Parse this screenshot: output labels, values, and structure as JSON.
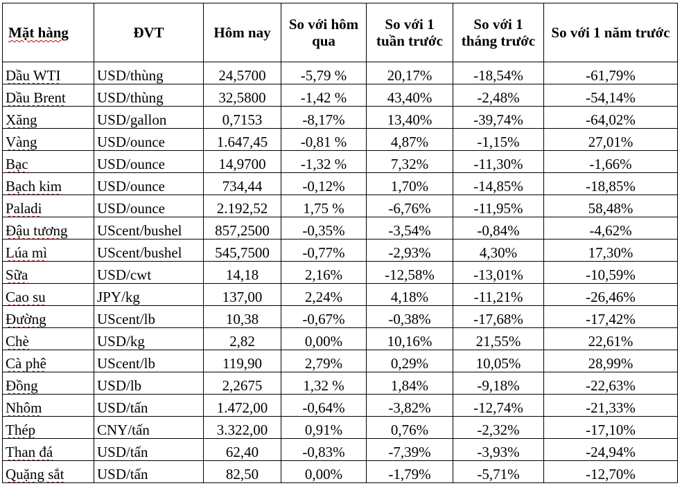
{
  "table": {
    "headers": {
      "item": "Mặt hàng",
      "unit": "ĐVT",
      "today": "Hôm nay",
      "vs_yesterday": "So với hôm qua",
      "vs_week": "So với 1 tuần trước",
      "vs_month": "So với 1 tháng trước",
      "vs_year": "So với 1 năm trước"
    },
    "rows": [
      {
        "item": "Dầu WTI",
        "unit": "USD/thùng",
        "today": "24,5700",
        "day": "-5,79 %",
        "week": "20,17%",
        "month": "-18,54%",
        "year": "-61,79%"
      },
      {
        "item": "Dầu Brent",
        "unit": "USD/thùng",
        "today": "32,5800",
        "day": "-1,42 %",
        "week": "43,40%",
        "month": "-2,48%",
        "year": "-54,14%"
      },
      {
        "item": "Xăng",
        "unit": "USD/gallon",
        "today": "0,7153",
        "day": "-8,17%",
        "week": "13,40%",
        "month": "-39,74%",
        "year": "-64,02%"
      },
      {
        "item": "Vàng",
        "unit": "USD/ounce",
        "today": "1.647,45",
        "day": "-0,81 %",
        "week": "4,87%",
        "month": "-1,15%",
        "year": "27,01%"
      },
      {
        "item": "Bạc",
        "unit": "USD/ounce",
        "today": "14,9700",
        "day": "-1,32 %",
        "week": "7,32%",
        "month": "-11,30%",
        "year": "-1,66%"
      },
      {
        "item": "Bạch kim",
        "unit": "USD/ounce",
        "today": "734,44",
        "day": "-0,12%",
        "week": "1,70%",
        "month": "-14,85%",
        "year": "-18,85%"
      },
      {
        "item": "Paladi",
        "unit": "USD/ounce",
        "today": "2.192,52",
        "day": "1,75 %",
        "week": "-6,76%",
        "month": "-11,95%",
        "year": "58,48%"
      },
      {
        "item": "Đậu tương",
        "unit": "UScent/bushel",
        "today": "857,2500",
        "day": "-0,35%",
        "week": "-3,54%",
        "month": "-0,84%",
        "year": "-4,62%"
      },
      {
        "item": "Lúa mì",
        "unit": "UScent/bushel",
        "today": "545,7500",
        "day": "-0,77%",
        "week": "-2,93%",
        "month": "4,30%",
        "year": "17,30%"
      },
      {
        "item": "Sữa",
        "unit": "USD/cwt",
        "today": "14,18",
        "day": "2,16%",
        "week": "-12,58%",
        "month": "-13,01%",
        "year": "-10,59%"
      },
      {
        "item": "Cao su",
        "unit": "JPY/kg",
        "today": "137,00",
        "day": "2,24%",
        "week": "4,18%",
        "month": "-11,21%",
        "year": "-26,46%"
      },
      {
        "item": "Đường",
        "unit": "UScent/lb",
        "today": "10,38",
        "day": "-0,67%",
        "week": "-0,38%",
        "month": "-17,68%",
        "year": "-17,42%"
      },
      {
        "item": "Chè",
        "unit": "USD/kg",
        "today": "2,82",
        "day": "0,00%",
        "week": "10,16%",
        "month": "21,55%",
        "year": "22,61%"
      },
      {
        "item": "Cà phê",
        "unit": "UScent/lb",
        "today": "119,90",
        "day": "2,79%",
        "week": "0,29%",
        "month": "10,05%",
        "year": "28,99%"
      },
      {
        "item": "Đồng",
        "unit": "USD/lb",
        "today": "2,2675",
        "day": "1,32 %",
        "week": "1,84%",
        "month": "-9,18%",
        "year": "-22,63%"
      },
      {
        "item": "Nhôm",
        "unit": "USD/tấn",
        "today": "1.472,00",
        "day": "-0,64%",
        "week": "-3,82%",
        "month": "-12,74%",
        "year": "-21,33%"
      },
      {
        "item": "Thép",
        "unit": "CNY/tấn",
        "today": "3.322,00",
        "day": "0,91%",
        "week": "0,76%",
        "month": "-2,32%",
        "year": "-17,10%"
      },
      {
        "item": "Than đá",
        "unit": "USD/tấn",
        "today": "62,40",
        "day": "-0,83%",
        "week": "-7,39%",
        "month": "-3,93%",
        "year": "-24,94%"
      },
      {
        "item": "Quặng sắt",
        "unit": "USD/tấn",
        "today": "82,50",
        "day": "0,00%",
        "week": "-1,79%",
        "month": "-5,71%",
        "year": "-12,70%"
      }
    ]
  }
}
